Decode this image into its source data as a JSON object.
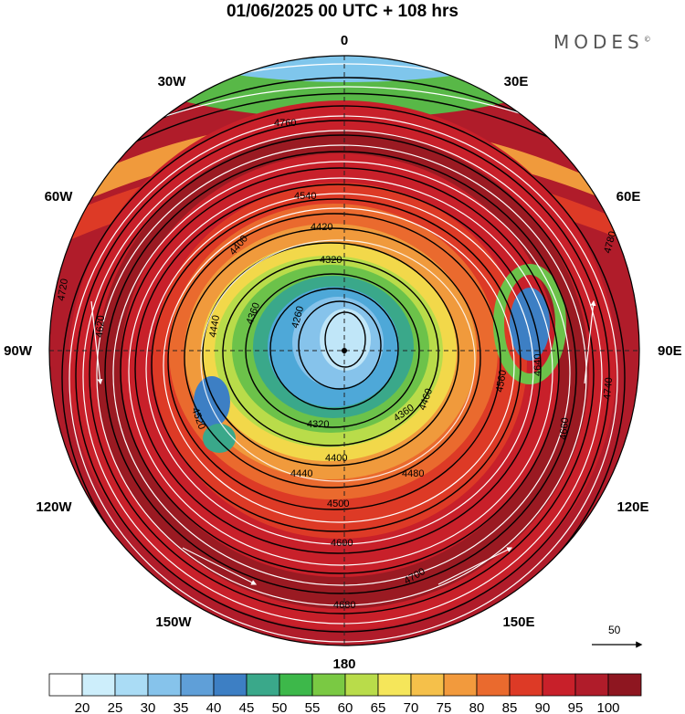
{
  "title": "01/06/2025  00 UTC  + 108 hrs",
  "brand": "MODES",
  "brand_mark": "©",
  "longitudes": {
    "lon_0": "0",
    "lon_30e": "30E",
    "lon_60e": "60E",
    "lon_90e": "90E",
    "lon_120e": "120E",
    "lon_150e": "150E",
    "lon_180": "180",
    "lon_150w": "150W",
    "lon_120w": "120W",
    "lon_90w": "90W",
    "lon_60w": "60W",
    "lon_30w": "30W"
  },
  "contour_labels": [
    {
      "text": "4760"
    },
    {
      "text": "4540"
    },
    {
      "text": "4420"
    },
    {
      "text": "4400"
    },
    {
      "text": "4320"
    },
    {
      "text": "4360"
    },
    {
      "text": "4260"
    },
    {
      "text": "4440"
    },
    {
      "text": "4520"
    },
    {
      "text": "4620"
    },
    {
      "text": "4720"
    },
    {
      "text": "4780"
    },
    {
      "text": "4640"
    },
    {
      "text": "4660"
    },
    {
      "text": "4740"
    },
    {
      "text": "4460"
    },
    {
      "text": "4480"
    },
    {
      "text": "4500"
    },
    {
      "text": "4600"
    },
    {
      "text": "4680"
    },
    {
      "text": "4700"
    },
    {
      "text": "4560"
    },
    {
      "text": "4320"
    },
    {
      "text": "4360"
    },
    {
      "text": "4400"
    },
    {
      "text": "4440"
    }
  ],
  "wind_reference": {
    "value": "50"
  },
  "colorbar": {
    "ticks": [
      "20",
      "25",
      "30",
      "35",
      "40",
      "45",
      "50",
      "55",
      "60",
      "65",
      "70",
      "75",
      "80",
      "85",
      "90",
      "95",
      "100"
    ],
    "colors": [
      "#ffffff",
      "#cdeefb",
      "#aadcf5",
      "#86c3eb",
      "#5f9fd8",
      "#3d7fc4",
      "#3aa88a",
      "#3db84a",
      "#7ac943",
      "#b9dc4a",
      "#f5e65a",
      "#f5c04a",
      "#f29a3d",
      "#ea6a2e",
      "#dd3a26",
      "#c8202a",
      "#b01c2a",
      "#8e1620"
    ]
  },
  "colors": {
    "pole_low": "#c0e6f8",
    "ring_inner": "#4ea8d8",
    "ring_green": "#6cc24a",
    "ring_yellow": "#f2d84a",
    "ring_orange": "#f09a3c",
    "jet": "#c8202a",
    "jet_core": "#9a1a22",
    "outer_green": "#58b847",
    "outer_blue": "#7fc6ec"
  }
}
